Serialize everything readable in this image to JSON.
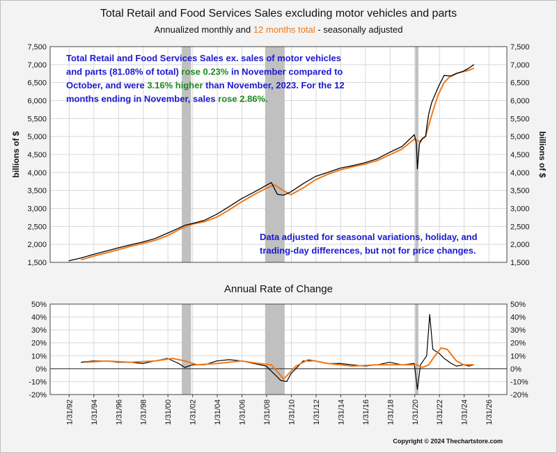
{
  "title": "Total Retail and Food Services Sales excluding motor vehicles and parts",
  "subtitle_parts": {
    "a": "Annualized monthly and ",
    "b": "12 months total",
    "c": " - seasonally adjusted",
    "b_color": "#f07818"
  },
  "copyright": "Copyright © 2024 Thechartstore.com",
  "colors": {
    "monthly": "#000000",
    "twelve_month": "#f07818",
    "recession": "#c0c0c0",
    "note_blue": "#1a1ad0",
    "note_green": "#1e8a1e",
    "plot_bg": "#ffffff",
    "grid": "#d8d8d8"
  },
  "upper_note": {
    "lines": [
      [
        {
          "t": "Total Retail and Food Services Sales ex. sales of motor vehicles",
          "c": "blue"
        }
      ],
      [
        {
          "t": "and parts (81.08% of total) ",
          "c": "blue"
        },
        {
          "t": "rose 0.23%",
          "c": "green"
        },
        {
          "t": " in November compared to",
          "c": "blue"
        }
      ],
      [
        {
          "t": "October, and were ",
          "c": "blue"
        },
        {
          "t": "3.16% higher",
          "c": "green"
        },
        {
          "t": " than November, 2023.   For the 12",
          "c": "blue"
        }
      ],
      [
        {
          "t": "months ending in November, sales ",
          "c": "blue"
        },
        {
          "t": "rose 2.86%.",
          "c": "green"
        }
      ]
    ]
  },
  "lower_note": {
    "lines": [
      "Data adjusted for seasonal variations, holiday, and",
      "trading-day differences, but not for price changes."
    ]
  },
  "chart_data": [
    {
      "type": "line",
      "panel": "upper",
      "title": "Total Retail and Food Services Sales excluding motor vehicles and parts",
      "ylabel": "billions of $",
      "ylabel_right": "billions of $",
      "ylim": [
        1500,
        7500
      ],
      "y_ticks": [
        "1,500",
        "2,000",
        "2,500",
        "3,000",
        "3,500",
        "4,000",
        "4,500",
        "5,000",
        "5,500",
        "6,000",
        "6,500",
        "7,000",
        "7,500"
      ],
      "x_ticks": [
        "1/31/92",
        "1/31/94",
        "1/31/96",
        "1/31/98",
        "1/31/00",
        "1/31/02",
        "1/31/04",
        "1/31/06",
        "1/31/08",
        "1/31/10",
        "1/31/12",
        "1/31/14",
        "1/31/16",
        "1/31/18",
        "1/31/20",
        "1/31/22",
        "1/31/24",
        "1/31/26"
      ],
      "recessions": [
        [
          "2001-03",
          "2001-11"
        ],
        [
          "2007-12",
          "2009-06"
        ],
        [
          "2020-02",
          "2020-04"
        ]
      ],
      "series": [
        {
          "name": "Annualized monthly",
          "x": [
            "1992-01",
            "1993-01",
            "1994-01",
            "1995-01",
            "1996-01",
            "1997-01",
            "1998-01",
            "1999-01",
            "2000-01",
            "2000-12",
            "2001-06",
            "2002-01",
            "2003-01",
            "2004-01",
            "2005-01",
            "2006-01",
            "2007-01",
            "2008-06",
            "2008-12",
            "2009-06",
            "2010-01",
            "2011-01",
            "2012-01",
            "2013-01",
            "2014-01",
            "2015-01",
            "2016-01",
            "2017-01",
            "2018-01",
            "2019-01",
            "2020-01",
            "2020-03",
            "2020-04",
            "2020-06",
            "2020-09",
            "2020-12",
            "2021-01",
            "2021-03",
            "2021-06",
            "2022-01",
            "2022-06",
            "2023-01",
            "2023-06",
            "2024-01",
            "2024-06",
            "2024-11"
          ],
          "y": [
            1540,
            1620,
            1720,
            1810,
            1900,
            1985,
            2065,
            2160,
            2310,
            2450,
            2530,
            2580,
            2670,
            2840,
            3050,
            3270,
            3450,
            3720,
            3390,
            3370,
            3460,
            3690,
            3890,
            4000,
            4120,
            4190,
            4270,
            4380,
            4560,
            4720,
            5050,
            4820,
            4100,
            4800,
            4950,
            5000,
            5250,
            5620,
            5950,
            6420,
            6700,
            6680,
            6750,
            6820,
            6900,
            7000
          ]
        },
        {
          "name": "12 months total",
          "x": [
            "1993-01",
            "1994-01",
            "1995-01",
            "1996-01",
            "1997-01",
            "1998-01",
            "1999-01",
            "2000-01",
            "2001-01",
            "2002-01",
            "2003-01",
            "2004-01",
            "2005-01",
            "2006-01",
            "2007-01",
            "2008-01",
            "2008-09",
            "2009-06",
            "2010-01",
            "2011-01",
            "2012-01",
            "2013-01",
            "2014-01",
            "2015-01",
            "2016-01",
            "2017-01",
            "2018-01",
            "2019-01",
            "2020-01",
            "2020-06",
            "2020-12",
            "2021-06",
            "2021-12",
            "2022-06",
            "2022-12",
            "2023-06",
            "2023-12",
            "2024-06",
            "2024-11"
          ],
          "y": [
            1570,
            1670,
            1760,
            1850,
            1945,
            2025,
            2110,
            2240,
            2420,
            2560,
            2630,
            2760,
            2960,
            3180,
            3380,
            3560,
            3660,
            3490,
            3380,
            3570,
            3800,
            3950,
            4070,
            4160,
            4230,
            4330,
            4490,
            4650,
            4930,
            4860,
            5010,
            5600,
            6150,
            6500,
            6680,
            6760,
            6800,
            6840,
            6900
          ]
        }
      ]
    },
    {
      "type": "line",
      "panel": "lower",
      "title": "Annual Rate of Change",
      "ylim": [
        -20,
        50
      ],
      "y_ticks": [
        "-20%",
        "-10%",
        "0%",
        "10%",
        "20%",
        "30%",
        "40%",
        "50%"
      ],
      "series": [
        {
          "name": "Annualized monthly",
          "x": [
            "1993-01",
            "1994-01",
            "1995-01",
            "1996-01",
            "1997-01",
            "1998-01",
            "1999-01",
            "2000-01",
            "2000-12",
            "2001-06",
            "2002-01",
            "2003-01",
            "2004-01",
            "2005-01",
            "2006-01",
            "2007-01",
            "2008-01",
            "2008-10",
            "2009-03",
            "2009-09",
            "2010-01",
            "2011-01",
            "2012-01",
            "2013-01",
            "2014-01",
            "2015-01",
            "2016-01",
            "2017-01",
            "2018-01",
            "2019-01",
            "2020-01",
            "2020-04",
            "2020-07",
            "2021-01",
            "2021-04",
            "2021-07",
            "2022-01",
            "2022-06",
            "2023-01",
            "2023-06",
            "2024-01",
            "2024-06",
            "2024-11"
          ],
          "y": [
            5,
            6,
            6,
            5,
            5,
            4,
            6,
            8,
            4,
            1,
            3,
            3,
            6,
            7,
            6,
            4,
            2,
            -5,
            -9,
            -10,
            -4,
            6,
            6,
            4,
            4,
            3,
            2,
            3,
            5,
            3,
            4,
            -16,
            3,
            10,
            42,
            15,
            12,
            8,
            4,
            2,
            3,
            2,
            3
          ]
        },
        {
          "name": "12 months total",
          "x": [
            "1993-06",
            "1995-01",
            "1997-01",
            "1999-01",
            "2000-06",
            "2001-06",
            "2002-06",
            "2004-01",
            "2006-01",
            "2007-06",
            "2008-06",
            "2009-06",
            "2010-06",
            "2011-06",
            "2013-01",
            "2015-01",
            "2017-01",
            "2019-01",
            "2020-03",
            "2020-09",
            "2021-03",
            "2021-09",
            "2022-03",
            "2022-09",
            "2023-06",
            "2024-01",
            "2024-11"
          ],
          "y": [
            5,
            6,
            5,
            6,
            8,
            6,
            3,
            4,
            6,
            4,
            3,
            -8,
            2,
            7,
            4,
            2,
            3,
            3,
            3,
            1,
            3,
            10,
            16,
            15,
            6,
            3,
            3
          ]
        }
      ]
    }
  ]
}
